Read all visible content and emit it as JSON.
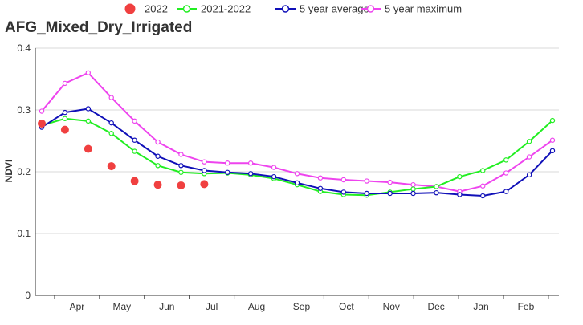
{
  "chart_data": {
    "type": "line",
    "title": "AFG_Mixed_Dry_Irrigated",
    "ylabel": "NDVI",
    "xlabel": "",
    "ylim": [
      0,
      0.4
    ],
    "yticks": [
      0,
      0.1,
      0.2,
      0.3,
      0.4
    ],
    "ytick_labels": [
      "0",
      "0.1",
      "0.2",
      "0.3",
      "0.4"
    ],
    "month_labels": [
      "Apr",
      "May",
      "Jun",
      "Jul",
      "Aug",
      "Sep",
      "Oct",
      "Nov",
      "Dec",
      "Jan",
      "Feb"
    ],
    "grid": "horizontal",
    "legend_position": "top",
    "series": [
      {
        "name": "2022",
        "style": "scatter",
        "color": "#f04040",
        "values": [
          0.278,
          0.268,
          0.237,
          0.209,
          0.185,
          0.179,
          0.178,
          0.18
        ]
      },
      {
        "name": "2021-2022",
        "style": "line",
        "color": "#22ee22",
        "values": [
          0.275,
          0.286,
          0.282,
          0.262,
          0.233,
          0.21,
          0.199,
          0.197,
          0.198,
          0.195,
          0.189,
          0.179,
          0.168,
          0.163,
          0.162,
          0.167,
          0.172,
          0.176,
          0.192,
          0.202,
          0.219,
          0.249,
          0.283
        ]
      },
      {
        "name": "5 year average",
        "style": "line",
        "color": "#1010b8",
        "values": [
          0.272,
          0.296,
          0.302,
          0.279,
          0.251,
          0.225,
          0.21,
          0.202,
          0.199,
          0.197,
          0.192,
          0.182,
          0.173,
          0.167,
          0.165,
          0.165,
          0.165,
          0.166,
          0.163,
          0.161,
          0.168,
          0.195,
          0.234
        ]
      },
      {
        "name": "5 year maximum",
        "style": "line",
        "color": "#ee44ee",
        "values": [
          0.298,
          0.343,
          0.36,
          0.32,
          0.282,
          0.248,
          0.228,
          0.216,
          0.214,
          0.214,
          0.207,
          0.197,
          0.19,
          0.187,
          0.185,
          0.183,
          0.179,
          0.176,
          0.168,
          0.177,
          0.198,
          0.224,
          0.251
        ]
      }
    ]
  }
}
